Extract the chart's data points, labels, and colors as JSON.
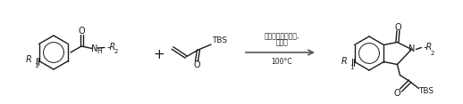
{
  "bg_color": "#ffffff",
  "line_color": "#1a1a1a",
  "text_color": "#1a1a1a",
  "arrow_color": "#555555",
  "fig_width": 5.18,
  "fig_height": 1.17,
  "dpi": 100,
  "condition_line1": "过渡金属锃傅化剂,",
  "condition_line2": "添加剂",
  "condition_line3": "100°C"
}
